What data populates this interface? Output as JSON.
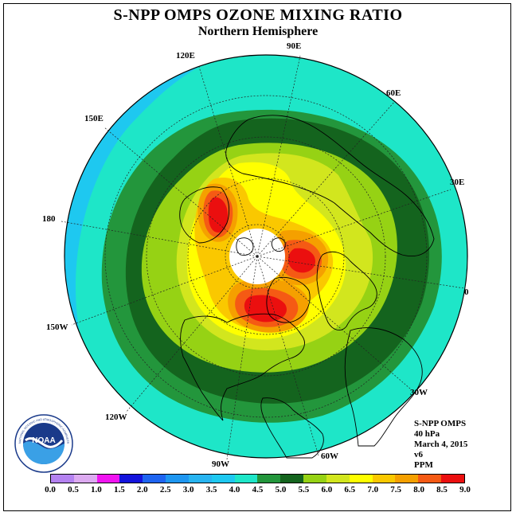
{
  "header": {
    "title": "S-NPP OMPS OZONE MIXING RATIO",
    "subtitle": "Northern Hemisphere"
  },
  "map": {
    "projection": "north polar stereographic",
    "longitude_labels": [
      "90E",
      "60E",
      "30E",
      "0",
      "30W",
      "60W",
      "90W",
      "120W",
      "150W",
      "180",
      "150E",
      "120E"
    ],
    "ozone_regions": [
      {
        "level": 3.5,
        "color": "#1ec8f0"
      },
      {
        "level": 4.0,
        "color": "#1ee6c8"
      },
      {
        "level": 4.5,
        "color": "#23963c"
      },
      {
        "level": 5.0,
        "color": "#14641e"
      },
      {
        "level": 5.5,
        "color": "#96d214"
      },
      {
        "level": 6.0,
        "color": "#d2e61e"
      },
      {
        "level": 6.5,
        "color": "#ffff00"
      },
      {
        "level": 7.0,
        "color": "#fac800"
      },
      {
        "level": 7.5,
        "color": "#f5a000"
      },
      {
        "level": 8.0,
        "color": "#f55a14"
      },
      {
        "level": 8.5,
        "color": "#eb0f0f"
      }
    ],
    "polar_night_color": "#ffffff"
  },
  "info": {
    "instrument": "S-NPP OMPS",
    "pressure": "40 hPa",
    "date": "March 4, 2015",
    "version": "v6",
    "units": "PPM"
  },
  "colorbar": {
    "ticks": [
      "0.0",
      "0.5",
      "1.0",
      "1.5",
      "2.0",
      "2.5",
      "3.0",
      "3.5",
      "4.0",
      "4.5",
      "5.0",
      "5.5",
      "6.0",
      "6.5",
      "7.0",
      "7.5",
      "8.0",
      "8.5",
      "9.0"
    ],
    "colors": [
      "#b482f0",
      "#dcaaf0",
      "#f014f0",
      "#1414dc",
      "#1e64f0",
      "#1e96f0",
      "#28b4f0",
      "#1ec8f0",
      "#1ee6c8",
      "#23963c",
      "#14641e",
      "#96d214",
      "#d2e61e",
      "#ffff00",
      "#fac800",
      "#f5a000",
      "#f55a14",
      "#eb0f0f",
      "#8c5a3c"
    ]
  },
  "logo": {
    "name": "NOAA",
    "ring_text": "NATIONAL OCEANIC AND ATMOSPHERIC ADMINISTRATION U.S. DEPARTMENT OF COMMERCE"
  }
}
